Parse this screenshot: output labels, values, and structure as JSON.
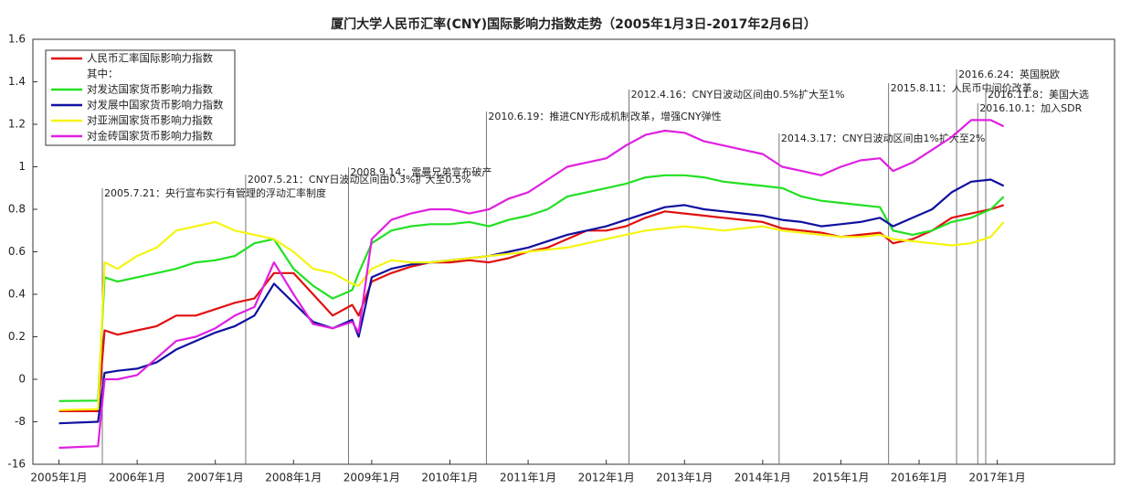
{
  "chart_data": {
    "type": "line",
    "title": "厦门大学人民币汇率(CNY)国际影响力指数走势（2005年1月3日-2017年2月6日）",
    "y_scale": "piecewise",
    "ylim": [
      -16,
      1.6
    ],
    "yticks": [
      -16,
      -8,
      0,
      0.2,
      0.4,
      0.6,
      0.8,
      1,
      1.2,
      1.4,
      1.6
    ],
    "xlim": [
      "2004-09",
      "2018-07"
    ],
    "xticks": [
      {
        "value": "2005-01",
        "label": "2005年1月"
      },
      {
        "value": "2006-01",
        "label": "2006年1月"
      },
      {
        "value": "2007-01",
        "label": "2007年1月"
      },
      {
        "value": "2008-01",
        "label": "2008年1月"
      },
      {
        "value": "2009-01",
        "label": "2009年1月"
      },
      {
        "value": "2010-01",
        "label": "2010年1月"
      },
      {
        "value": "2011-01",
        "label": "2011年1月"
      },
      {
        "value": "2012-01",
        "label": "2012年1月"
      },
      {
        "value": "2013-01",
        "label": "2013年1月"
      },
      {
        "value": "2014-01",
        "label": "2014年1月"
      },
      {
        "value": "2015-01",
        "label": "2015年1月"
      },
      {
        "value": "2016-01",
        "label": "2016年1月"
      },
      {
        "value": "2017-01",
        "label": "2017年1月"
      }
    ],
    "legend_position": "upper left",
    "legend_note": "其中：",
    "x": [
      "2005-01",
      "2005-07",
      "2005-08",
      "2005-10",
      "2006-01",
      "2006-04",
      "2006-07",
      "2006-10",
      "2007-01",
      "2007-04",
      "2007-07",
      "2007-10",
      "2008-01",
      "2008-04",
      "2008-07",
      "2008-10",
      "2008-11",
      "2009-01",
      "2009-04",
      "2009-07",
      "2009-10",
      "2010-01",
      "2010-04",
      "2010-07",
      "2010-10",
      "2011-01",
      "2011-04",
      "2011-07",
      "2011-10",
      "2012-01",
      "2012-04",
      "2012-07",
      "2012-10",
      "2013-01",
      "2013-04",
      "2013-07",
      "2013-10",
      "2014-01",
      "2014-04",
      "2014-07",
      "2014-10",
      "2015-01",
      "2015-04",
      "2015-07",
      "2015-09",
      "2015-12",
      "2016-03",
      "2016-06",
      "2016-09",
      "2016-12",
      "2017-02"
    ],
    "series": [
      {
        "name": "人民币汇率国际影响力指数",
        "color": "#e01010",
        "values": [
          -6,
          -6,
          0.23,
          0.21,
          0.23,
          0.25,
          0.3,
          0.3,
          0.33,
          0.36,
          0.38,
          0.5,
          0.5,
          0.4,
          0.3,
          0.35,
          0.3,
          0.46,
          0.5,
          0.53,
          0.55,
          0.55,
          0.56,
          0.55,
          0.57,
          0.6,
          0.62,
          0.66,
          0.7,
          0.7,
          0.72,
          0.76,
          0.79,
          0.78,
          0.77,
          0.76,
          0.75,
          0.74,
          0.71,
          0.7,
          0.69,
          0.67,
          0.68,
          0.69,
          0.64,
          0.66,
          0.7,
          0.76,
          0.78,
          0.8,
          0.82
        ]
      },
      {
        "name": "对发达国家货币影响力指数",
        "color": "#22e022",
        "values": [
          -4.1,
          -4,
          0.48,
          0.46,
          0.48,
          0.5,
          0.52,
          0.55,
          0.56,
          0.58,
          0.64,
          0.66,
          0.52,
          0.44,
          0.38,
          0.42,
          0.5,
          0.64,
          0.7,
          0.72,
          0.73,
          0.73,
          0.74,
          0.72,
          0.75,
          0.77,
          0.8,
          0.86,
          0.88,
          0.9,
          0.92,
          0.95,
          0.96,
          0.96,
          0.95,
          0.93,
          0.92,
          0.91,
          0.9,
          0.86,
          0.84,
          0.83,
          0.82,
          0.81,
          0.7,
          0.68,
          0.7,
          0.74,
          0.76,
          0.8,
          0.86
        ]
      },
      {
        "name": "对发展中国家货币影响力指数",
        "color": "#1010a0",
        "values": [
          -8.3,
          -8,
          0.03,
          0.04,
          0.05,
          0.08,
          0.14,
          0.18,
          0.22,
          0.25,
          0.3,
          0.45,
          0.36,
          0.27,
          0.24,
          0.28,
          0.2,
          0.48,
          0.52,
          0.54,
          0.55,
          0.56,
          0.57,
          0.58,
          0.6,
          0.62,
          0.65,
          0.68,
          0.7,
          0.72,
          0.75,
          0.78,
          0.81,
          0.82,
          0.8,
          0.79,
          0.78,
          0.77,
          0.75,
          0.74,
          0.72,
          0.73,
          0.74,
          0.76,
          0.72,
          0.76,
          0.8,
          0.88,
          0.93,
          0.94,
          0.91
        ]
      },
      {
        "name": "对亚洲国家货币影响力指数",
        "color": "#f5f510",
        "values": [
          -5.8,
          -5.6,
          0.55,
          0.52,
          0.58,
          0.62,
          0.7,
          0.72,
          0.74,
          0.7,
          0.68,
          0.66,
          0.6,
          0.52,
          0.5,
          0.45,
          0.44,
          0.52,
          0.56,
          0.55,
          0.55,
          0.56,
          0.57,
          0.58,
          0.59,
          0.6,
          0.61,
          0.62,
          0.64,
          0.66,
          0.68,
          0.7,
          0.71,
          0.72,
          0.71,
          0.7,
          0.71,
          0.72,
          0.7,
          0.69,
          0.68,
          0.67,
          0.67,
          0.68,
          0.66,
          0.65,
          0.64,
          0.63,
          0.64,
          0.67,
          0.74
        ]
      },
      {
        "name": "对金砖国家货币影响力指数",
        "color": "#e020e0",
        "values": [
          -12.9,
          -12.6,
          0,
          0,
          0.02,
          0.1,
          0.18,
          0.2,
          0.24,
          0.3,
          0.34,
          0.55,
          0.4,
          0.26,
          0.24,
          0.27,
          0.22,
          0.66,
          0.75,
          0.78,
          0.8,
          0.8,
          0.78,
          0.8,
          0.85,
          0.88,
          0.94,
          1,
          1.02,
          1.04,
          1.1,
          1.15,
          1.17,
          1.16,
          1.12,
          1.1,
          1.08,
          1.06,
          1,
          0.98,
          0.96,
          1,
          1.03,
          1.04,
          0.98,
          1.02,
          1.08,
          1.14,
          1.22,
          1.22,
          1.19
        ]
      }
    ],
    "annotations": [
      {
        "x": "2005-07-21",
        "text": "2005.7.21：央行宣布实行有管理的浮动汇率制度"
      },
      {
        "x": "2007-05-21",
        "text": "2007.5.21：CNY日波动区间由0.3%扩大至0.5%"
      },
      {
        "x": "2008-09-14",
        "text": "2008.9.14：雷曼兄弟宣布破产"
      },
      {
        "x": "2010-06-19",
        "text": "2010.6.19：推进CNY形成机制改革，增强CNY弹性"
      },
      {
        "x": "2012-04-16",
        "text": "2012.4.16：CNY日波动区间由0.5%扩大至1%"
      },
      {
        "x": "2014-03-17",
        "text": "2014.3.17：CNY日波动区间由1%扩大至2%"
      },
      {
        "x": "2015-08-11",
        "text": "2015.8.11：人民币中间价改革"
      },
      {
        "x": "2016-06-24",
        "text": "2016.6.24：英国脱欧"
      },
      {
        "x": "2016-10-01",
        "text": "2016.10.1：加入SDR"
      },
      {
        "x": "2016-11-08",
        "text": "2016.11.8：美国大选"
      }
    ]
  }
}
